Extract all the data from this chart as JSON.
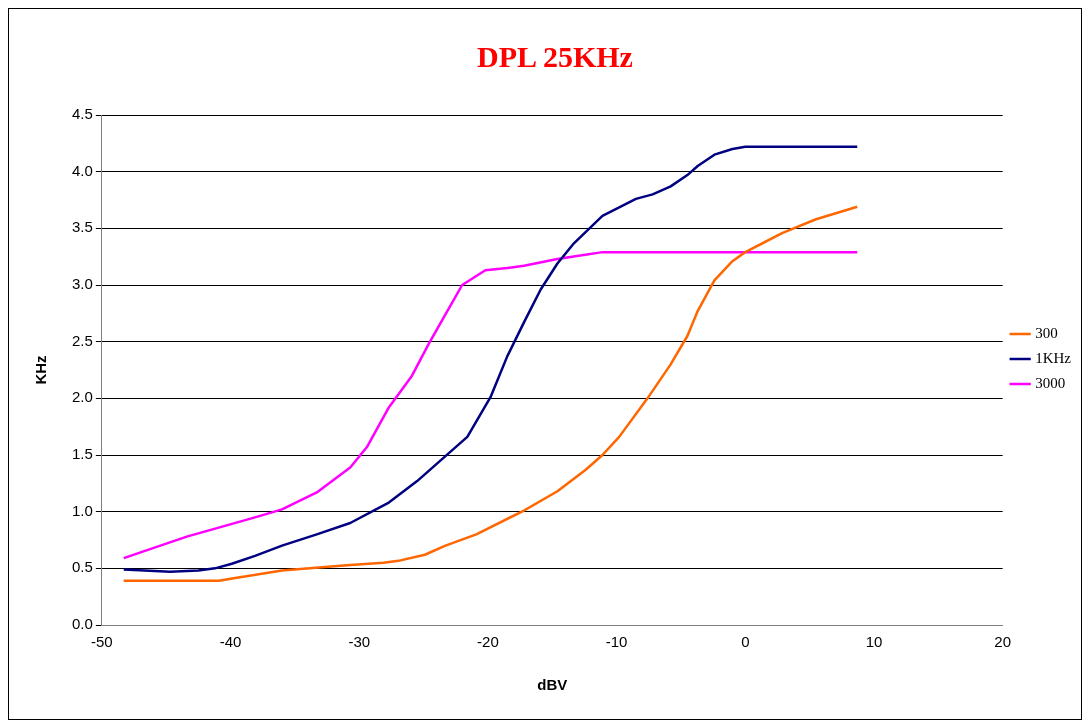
{
  "chart_data": {
    "type": "line",
    "title": "DPL 25KHz",
    "xlabel": "dBV",
    "ylabel": "KHz",
    "xlim": [
      -50,
      20
    ],
    "xticks": [
      -50,
      -40,
      -30,
      -20,
      -10,
      0,
      10,
      20
    ],
    "ylim": [
      0,
      4.5
    ],
    "yticks": [
      {
        "value": 0,
        "label": "0.0"
      },
      {
        "value": 0.5,
        "label": "0.5"
      },
      {
        "value": 1,
        "label": "1.0"
      },
      {
        "value": 1.5,
        "label": "1.5"
      },
      {
        "value": 2,
        "label": "2.0"
      },
      {
        "value": 2.5,
        "label": "2.5"
      },
      {
        "value": 3,
        "label": "3.0"
      },
      {
        "value": 3.5,
        "label": "3.5"
      },
      {
        "value": 4,
        "label": "4.0"
      },
      {
        "value": 4.5,
        "label": "4.5"
      }
    ],
    "grid": "y",
    "legend": "right",
    "marker": "none",
    "line_style": "solid",
    "series": [
      {
        "name": "300",
        "color": "#ff6600",
        "x": [
          -48.3,
          -40.9,
          -39.4,
          -36,
          -32.9,
          -30.7,
          -28.1,
          -26.8,
          -24.9,
          -23.3,
          -20.9,
          -17.2,
          -14.6,
          -12.4,
          -11.1,
          -9.8,
          -7.6,
          -5.8,
          -4.5,
          -3.7,
          -2.4,
          -1,
          0,
          2.9,
          5.5,
          8.7
        ],
        "values": [
          0.39,
          0.39,
          0.42,
          0.48,
          0.51,
          0.53,
          0.55,
          0.57,
          0.62,
          0.7,
          0.8,
          1.01,
          1.18,
          1.37,
          1.5,
          1.66,
          2,
          2.3,
          2.55,
          2.77,
          3.04,
          3.21,
          3.29,
          3.46,
          3.58,
          3.69
        ]
      },
      {
        "name": "1KHz",
        "color": "#000080",
        "x": [
          -48.3,
          -44.7,
          -42.5,
          -41.2,
          -39.9,
          -38.1,
          -36,
          -33.3,
          -30.7,
          -27.7,
          -25.5,
          -23.3,
          -21.6,
          -19.8,
          -18.5,
          -17.2,
          -15.9,
          -14.6,
          -13.3,
          -11.1,
          -8.5,
          -7.2,
          -5.8,
          -4.5,
          -3.7,
          -2.4,
          -1,
          0,
          8.7
        ],
        "values": [
          0.49,
          0.47,
          0.48,
          0.5,
          0.54,
          0.61,
          0.7,
          0.8,
          0.9,
          1.08,
          1.27,
          1.49,
          1.66,
          2.01,
          2.37,
          2.67,
          2.96,
          3.19,
          3.37,
          3.61,
          3.76,
          3.8,
          3.87,
          3.97,
          4.05,
          4.15,
          4.2,
          4.22,
          4.22
        ]
      },
      {
        "name": "3000",
        "color": "#ff00ff",
        "x": [
          -48.3,
          -43.4,
          -38.1,
          -36,
          -33.3,
          -30.7,
          -29.4,
          -27.7,
          -25.9,
          -24.6,
          -23.3,
          -22,
          -20.2,
          -18.5,
          -17.2,
          -14.6,
          -11.1,
          8.7
        ],
        "values": [
          0.59,
          0.78,
          0.95,
          1.02,
          1.17,
          1.39,
          1.57,
          1.92,
          2.2,
          2.48,
          2.74,
          3,
          3.13,
          3.15,
          3.17,
          3.23,
          3.29,
          3.29
        ]
      }
    ]
  }
}
